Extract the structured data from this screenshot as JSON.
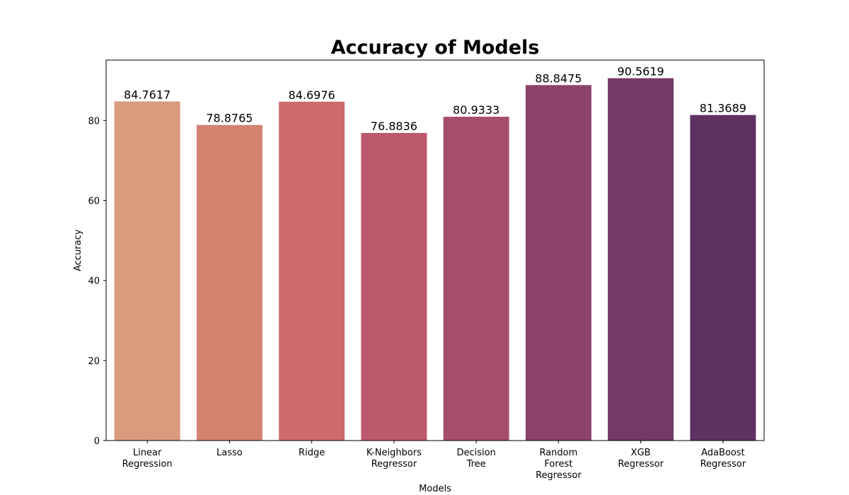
{
  "chart_data": {
    "type": "bar",
    "title": "Accuracy of Models",
    "xlabel": "Models",
    "ylabel": "Accuracy",
    "categories": [
      "Linear Regression",
      "Lasso",
      "Ridge",
      "K-Neighbors Regressor",
      "Decision Tree",
      "Random Forest Regressor",
      "XGB Regressor",
      "AdaBoost Regressor"
    ],
    "values": [
      84.7617,
      78.8765,
      84.6976,
      76.8836,
      80.9333,
      88.8475,
      90.5619,
      81.3689
    ],
    "value_labels": [
      "84.7617",
      "78.8765",
      "84.6976",
      "76.8836",
      "80.9333",
      "88.8475",
      "90.5619",
      "81.3689"
    ],
    "yticks": [
      0,
      20,
      40,
      60,
      80
    ],
    "ylim": [
      0,
      95.09
    ],
    "grid": false,
    "legend": "none",
    "colors": [
      "#da9a7e",
      "#d48371",
      "#cd6b6b",
      "#bd596c",
      "#a64d6e",
      "#8c426b",
      "#753969",
      "#5f3162"
    ]
  }
}
